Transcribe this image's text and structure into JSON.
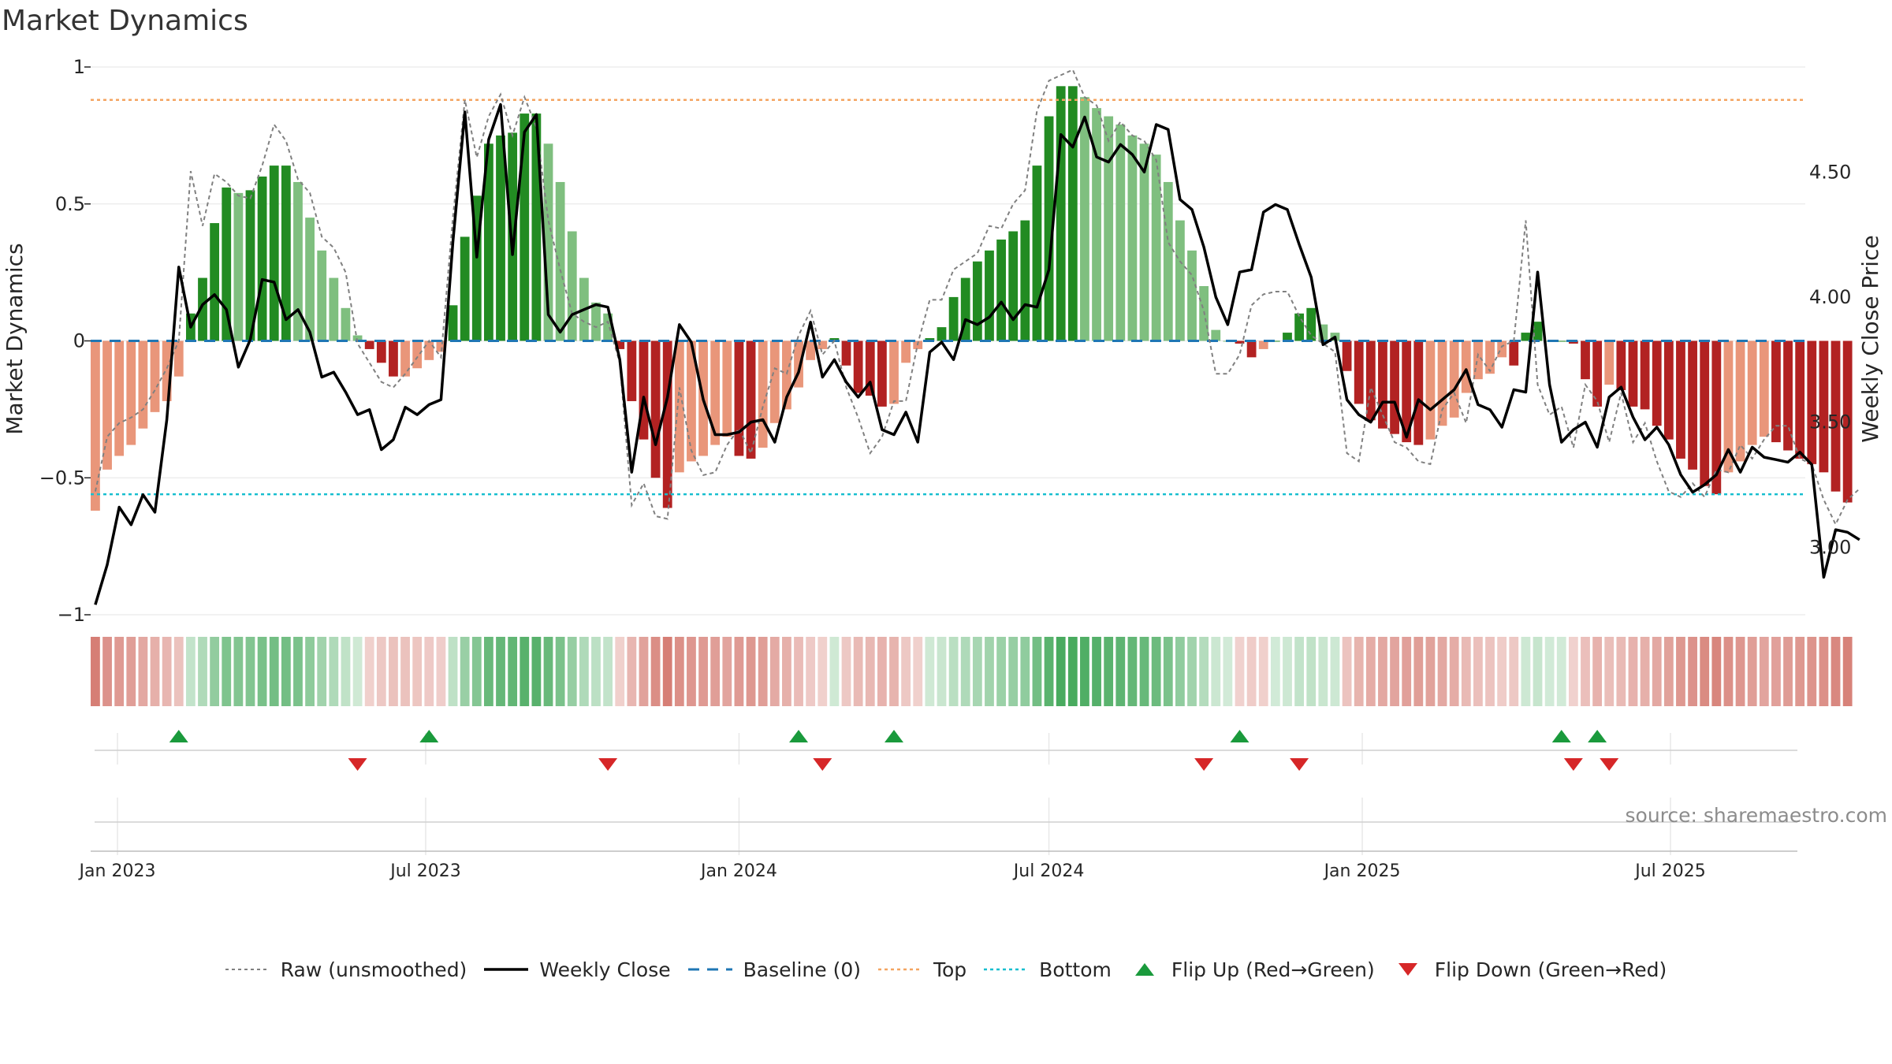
{
  "title": "Market Dynamics",
  "source": "source: sharemaestro.com",
  "colors": {
    "strong_green": "#228b22",
    "light_green": "#7fbf7f",
    "strong_red": "#b22222",
    "light_red": "#e9967a",
    "raw": "#808080",
    "close": "#000000",
    "baseline": "#1f77b4",
    "top": "#f4a460",
    "bottom": "#17becf",
    "flip_up": "#1a9a3c",
    "flip_down": "#d62728"
  },
  "legend": [
    {
      "label": "Raw (unsmoothed)",
      "icon": "dotted-gray-line"
    },
    {
      "label": "Weekly Close",
      "icon": "solid-black-line"
    },
    {
      "label": "Baseline (0)",
      "icon": "dashed-blue-line"
    },
    {
      "label": "Top",
      "icon": "dotted-orange-line"
    },
    {
      "label": "Bottom",
      "icon": "dotted-cyan-line"
    },
    {
      "label": "Flip Up (Red→Green)",
      "icon": "green-up-triangle"
    },
    {
      "label": "Flip Down (Green→Red)",
      "icon": "red-down-triangle"
    }
  ],
  "chart_data": {
    "type": "bar",
    "title": "Market Dynamics",
    "ylabel": "Market Dynamics",
    "y2label": "Weekly Close Price",
    "ylim": [
      -1,
      1
    ],
    "y2lim": [
      2.73,
      4.92
    ],
    "yticks": [
      {
        "v": 1,
        "label": "1"
      },
      {
        "v": 0.5,
        "label": "0.5"
      },
      {
        "v": 0,
        "label": "0"
      },
      {
        "v": -0.5,
        "label": "−0.5"
      },
      {
        "v": -1,
        "label": "−1"
      }
    ],
    "y2ticks": [
      {
        "v": 4.5,
        "label": "4.50"
      },
      {
        "v": 4.0,
        "label": "4.00"
      },
      {
        "v": 3.5,
        "label": "3.50"
      },
      {
        "v": 3.0,
        "label": "3.00"
      }
    ],
    "xstart": "2022-12-19",
    "xticks": [
      {
        "date": "2023-01-01",
        "label": "Jan 2023"
      },
      {
        "date": "2023-07-01",
        "label": "Jul 2023"
      },
      {
        "date": "2024-01-01",
        "label": "Jan 2024"
      },
      {
        "date": "2024-07-01",
        "label": "Jul 2024"
      },
      {
        "date": "2025-01-01",
        "label": "Jan 2025"
      },
      {
        "date": "2025-07-01",
        "label": "Jul 2025"
      }
    ],
    "top_level": 0.88,
    "bottom_level": -0.56,
    "baseline": 0,
    "grid": true,
    "legend_position": "bottom",
    "bars": [
      -0.62,
      -0.47,
      -0.42,
      -0.38,
      -0.32,
      -0.26,
      -0.22,
      -0.13,
      0.1,
      0.23,
      0.43,
      0.56,
      0.54,
      0.55,
      0.6,
      0.64,
      0.64,
      0.58,
      0.45,
      0.33,
      0.23,
      0.12,
      0.02,
      -0.03,
      -0.08,
      -0.13,
      -0.13,
      -0.1,
      -0.07,
      -0.04,
      0.13,
      0.38,
      0.53,
      0.72,
      0.75,
      0.76,
      0.83,
      0.83,
      0.72,
      0.58,
      0.4,
      0.23,
      0.14,
      0.1,
      -0.03,
      -0.22,
      -0.36,
      -0.5,
      -0.61,
      -0.48,
      -0.44,
      -0.42,
      -0.38,
      -0.35,
      -0.42,
      -0.43,
      -0.39,
      -0.3,
      -0.25,
      -0.17,
      -0.07,
      -0.03,
      0.01,
      -0.09,
      -0.19,
      -0.2,
      -0.24,
      -0.23,
      -0.08,
      -0.03,
      0.01,
      0.05,
      0.16,
      0.23,
      0.29,
      0.33,
      0.37,
      0.4,
      0.44,
      0.64,
      0.82,
      0.93,
      0.93,
      0.89,
      0.85,
      0.82,
      0.79,
      0.75,
      0.72,
      0.68,
      0.58,
      0.44,
      0.33,
      0.2,
      0.04,
      0,
      -0.01,
      -0.06,
      -0.03,
      0,
      0.03,
      0.1,
      0.12,
      0.06,
      0.03,
      -0.11,
      -0.23,
      -0.29,
      -0.32,
      -0.34,
      -0.37,
      -0.38,
      -0.36,
      -0.31,
      -0.28,
      -0.19,
      -0.14,
      -0.12,
      -0.06,
      -0.09,
      0.03,
      0.07,
      0,
      0,
      -0.01,
      -0.14,
      -0.24,
      -0.16,
      -0.18,
      -0.24,
      -0.25,
      -0.31,
      -0.36,
      -0.43,
      -0.47,
      -0.53,
      -0.56,
      -0.48,
      -0.44,
      -0.38,
      -0.35,
      -0.37,
      -0.4,
      -0.43,
      -0.45,
      -0.48,
      -0.55,
      -0.59
    ],
    "raw": [
      -0.55,
      -0.35,
      -0.3,
      -0.28,
      -0.25,
      -0.18,
      -0.1,
      0.0,
      0.62,
      0.42,
      0.61,
      0.58,
      0.53,
      0.52,
      0.64,
      0.79,
      0.73,
      0.59,
      0.54,
      0.38,
      0.34,
      0.25,
      -0.01,
      -0.08,
      -0.15,
      -0.17,
      -0.12,
      -0.06,
      0.0,
      -0.06,
      0.45,
      0.88,
      0.67,
      0.82,
      0.9,
      0.75,
      0.89,
      0.78,
      0.44,
      0.26,
      0.1,
      0.07,
      0.05,
      0.07,
      -0.08,
      -0.6,
      -0.52,
      -0.64,
      -0.65,
      -0.17,
      -0.4,
      -0.49,
      -0.48,
      -0.38,
      -0.32,
      -0.41,
      -0.24,
      -0.1,
      -0.12,
      0.02,
      0.11,
      -0.05,
      0.0,
      -0.17,
      -0.28,
      -0.41,
      -0.35,
      -0.22,
      -0.22,
      -0.01,
      0.15,
      0.15,
      0.26,
      0.29,
      0.32,
      0.42,
      0.41,
      0.5,
      0.55,
      0.84,
      0.95,
      0.97,
      0.99,
      0.89,
      0.86,
      0.73,
      0.8,
      0.75,
      0.73,
      0.66,
      0.36,
      0.29,
      0.24,
      0.11,
      -0.12,
      -0.12,
      -0.05,
      0.13,
      0.17,
      0.18,
      0.18,
      0.09,
      0.02,
      -0.01,
      -0.04,
      -0.41,
      -0.44,
      -0.17,
      -0.27,
      -0.37,
      -0.39,
      -0.44,
      -0.45,
      -0.25,
      -0.19,
      -0.3,
      -0.05,
      -0.11,
      -0.02,
      0.0,
      0.44,
      -0.16,
      -0.27,
      -0.24,
      -0.39,
      -0.16,
      -0.22,
      -0.37,
      -0.19,
      -0.37,
      -0.3,
      -0.44,
      -0.55,
      -0.57,
      -0.52,
      -0.57,
      -0.47,
      -0.48,
      -0.38,
      -0.43,
      -0.36,
      -0.31,
      -0.31,
      -0.43,
      -0.45,
      -0.58,
      -0.67,
      -0.58,
      -0.54
    ],
    "close": [
      2.77,
      2.93,
      3.16,
      3.09,
      3.21,
      3.14,
      3.51,
      4.12,
      3.88,
      3.97,
      4.01,
      3.95,
      3.72,
      3.83,
      4.07,
      4.06,
      3.91,
      3.95,
      3.86,
      3.68,
      3.7,
      3.62,
      3.53,
      3.55,
      3.39,
      3.43,
      3.56,
      3.53,
      3.57,
      3.59,
      4.22,
      4.74,
      4.16,
      4.63,
      4.77,
      4.17,
      4.66,
      4.73,
      3.93,
      3.86,
      3.93,
      3.95,
      3.97,
      3.96,
      3.75,
      3.3,
      3.6,
      3.41,
      3.6,
      3.89,
      3.82,
      3.59,
      3.45,
      3.45,
      3.46,
      3.5,
      3.51,
      3.42,
      3.6,
      3.7,
      3.9,
      3.68,
      3.75,
      3.66,
      3.6,
      3.66,
      3.47,
      3.45,
      3.54,
      3.42,
      3.78,
      3.82,
      3.75,
      3.91,
      3.89,
      3.92,
      3.98,
      3.91,
      3.97,
      3.96,
      4.11,
      4.65,
      4.6,
      4.72,
      4.56,
      4.54,
      4.61,
      4.57,
      4.5,
      4.69,
      4.67,
      4.39,
      4.35,
      4.2,
      4.0,
      3.89,
      4.1,
      4.11,
      4.34,
      4.37,
      4.35,
      4.21,
      4.08,
      3.81,
      3.84,
      3.59,
      3.53,
      3.5,
      3.58,
      3.58,
      3.44,
      3.59,
      3.55,
      3.59,
      3.63,
      3.71,
      3.57,
      3.55,
      3.48,
      3.63,
      3.62,
      4.1,
      3.65,
      3.42,
      3.47,
      3.5,
      3.4,
      3.6,
      3.64,
      3.52,
      3.43,
      3.48,
      3.41,
      3.29,
      3.22,
      3.25,
      3.29,
      3.39,
      3.3,
      3.4,
      3.36,
      3.35,
      3.34,
      3.38,
      3.33,
      2.88,
      3.07,
      3.06,
      3.03
    ],
    "flips": [
      {
        "date": "2023-02-06",
        "dir": "up"
      },
      {
        "date": "2023-05-22",
        "dir": "down"
      },
      {
        "date": "2023-07-03",
        "dir": "up"
      },
      {
        "date": "2023-10-16",
        "dir": "down"
      },
      {
        "date": "2024-02-05",
        "dir": "up"
      },
      {
        "date": "2024-02-19",
        "dir": "down"
      },
      {
        "date": "2024-04-01",
        "dir": "up"
      },
      {
        "date": "2024-09-30",
        "dir": "down"
      },
      {
        "date": "2024-10-21",
        "dir": "up"
      },
      {
        "date": "2024-11-25",
        "dir": "down"
      },
      {
        "date": "2025-04-28",
        "dir": "up"
      },
      {
        "date": "2025-05-05",
        "dir": "down"
      },
      {
        "date": "2025-05-19",
        "dir": "up"
      },
      {
        "date": "2025-05-26",
        "dir": "down"
      }
    ]
  }
}
